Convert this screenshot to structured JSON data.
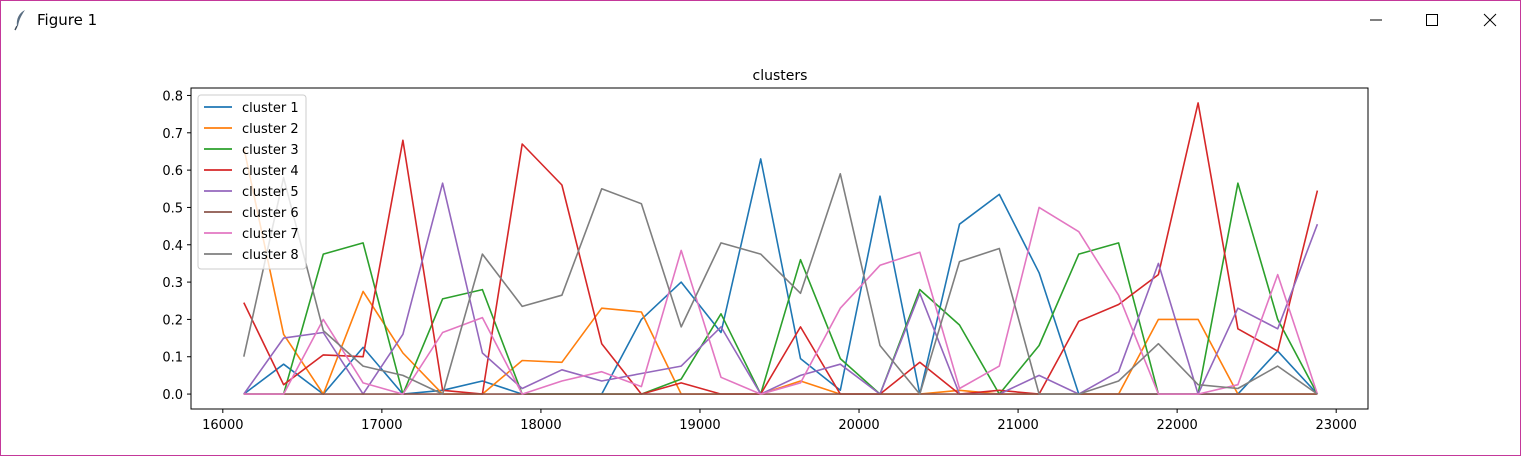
{
  "window": {
    "title": "Figure 1",
    "icons": [
      "feather-icon",
      "minimize-icon",
      "maximize-icon",
      "close-icon"
    ]
  },
  "chart_data": {
    "type": "line",
    "title": "clusters",
    "xlabel": "",
    "ylabel": "",
    "xlim": [
      15800,
      23200
    ],
    "ylim": [
      -0.04,
      0.82
    ],
    "xticks": [
      16000,
      17000,
      18000,
      19000,
      20000,
      21000,
      22000,
      23000
    ],
    "yticks": [
      0.0,
      0.1,
      0.2,
      0.3,
      0.4,
      0.5,
      0.6,
      0.7,
      0.8
    ],
    "xtick_labels": [
      "16000",
      "17000",
      "18000",
      "19000",
      "20000",
      "21000",
      "22000",
      "23000"
    ],
    "ytick_labels": [
      "0.0",
      "0.1",
      "0.2",
      "0.3",
      "0.4",
      "0.5",
      "0.6",
      "0.7",
      "0.8"
    ],
    "grid": false,
    "legend_position": "top-left",
    "x": [
      16132,
      16382,
      16632,
      16882,
      17132,
      17382,
      17632,
      17882,
      18132,
      18382,
      18632,
      18882,
      19132,
      19382,
      19632,
      19882,
      20132,
      20382,
      20632,
      20882,
      21132,
      21382,
      21632,
      21882,
      22132,
      22382,
      22632,
      22882
    ],
    "series": [
      {
        "name": "cluster 1",
        "color": "#1f77b4",
        "values": [
          0.0,
          0.08,
          0.0,
          0.125,
          0.0,
          0.01,
          0.035,
          0.0,
          0.0,
          0.0,
          0.2,
          0.3,
          0.165,
          0.63,
          0.095,
          0.01,
          0.53,
          0.0,
          0.455,
          0.535,
          0.325,
          0.0,
          0.0,
          0.0,
          0.0,
          0.0,
          0.115,
          0.0
        ]
      },
      {
        "name": "cluster 2",
        "color": "#ff7f0e",
        "values": [
          0.66,
          0.16,
          0.0,
          0.275,
          0.11,
          0.0,
          0.0,
          0.09,
          0.085,
          0.23,
          0.22,
          0.0,
          0.0,
          0.0,
          0.035,
          0.0,
          0.0,
          0.0,
          0.01,
          0.0,
          0.0,
          0.0,
          0.0,
          0.2,
          0.2,
          0.0,
          0.0,
          0.0
        ]
      },
      {
        "name": "cluster 3",
        "color": "#2ca02c",
        "values": [
          0.0,
          0.0,
          0.375,
          0.405,
          0.0,
          0.255,
          0.28,
          0.0,
          0.0,
          0.0,
          0.0,
          0.04,
          0.215,
          0.0,
          0.36,
          0.095,
          0.0,
          0.28,
          0.185,
          0.0,
          0.13,
          0.375,
          0.405,
          0.0,
          0.0,
          0.565,
          0.2,
          0.0
        ]
      },
      {
        "name": "cluster 4",
        "color": "#d62728",
        "values": [
          0.245,
          0.025,
          0.105,
          0.1,
          0.68,
          0.01,
          0.0,
          0.67,
          0.56,
          0.135,
          0.0,
          0.03,
          0.0,
          0.0,
          0.18,
          0.0,
          0.0,
          0.085,
          0.0,
          0.01,
          0.0,
          0.195,
          0.24,
          0.32,
          0.78,
          0.175,
          0.115,
          0.545
        ]
      },
      {
        "name": "cluster 5",
        "color": "#9467bd",
        "values": [
          0.0,
          0.15,
          0.165,
          0.0,
          0.16,
          0.565,
          0.11,
          0.015,
          0.065,
          0.035,
          0.055,
          0.075,
          0.18,
          0.0,
          0.05,
          0.08,
          0.0,
          0.27,
          0.0,
          0.0,
          0.05,
          0.0,
          0.06,
          0.35,
          0.0,
          0.23,
          0.175,
          0.455
        ]
      },
      {
        "name": "cluster 6",
        "color": "#8c564b",
        "values": [
          0.0,
          0.0,
          0.0,
          0.0,
          0.0,
          0.0,
          0.0,
          0.0,
          0.0,
          0.0,
          0.0,
          0.0,
          0.0,
          0.0,
          0.0,
          0.0,
          0.0,
          0.0,
          0.0,
          0.0,
          0.0,
          0.0,
          0.0,
          0.0,
          0.0,
          0.0,
          0.0,
          0.0
        ]
      },
      {
        "name": "cluster 7",
        "color": "#e377c2",
        "values": [
          0.0,
          0.0,
          0.2,
          0.03,
          0.0,
          0.165,
          0.205,
          0.0,
          0.035,
          0.06,
          0.02,
          0.385,
          0.045,
          0.0,
          0.03,
          0.23,
          0.345,
          0.38,
          0.015,
          0.075,
          0.5,
          0.435,
          0.265,
          0.0,
          0.0,
          0.025,
          0.32,
          0.0
        ]
      },
      {
        "name": "cluster 8",
        "color": "#7f7f7f",
        "values": [
          0.1,
          0.58,
          0.17,
          0.075,
          0.05,
          0.0,
          0.375,
          0.235,
          0.265,
          0.55,
          0.51,
          0.18,
          0.405,
          0.375,
          0.27,
          0.59,
          0.13,
          0.0,
          0.355,
          0.39,
          0.0,
          0.0,
          0.035,
          0.135,
          0.025,
          0.015,
          0.075,
          0.0
        ]
      }
    ]
  }
}
